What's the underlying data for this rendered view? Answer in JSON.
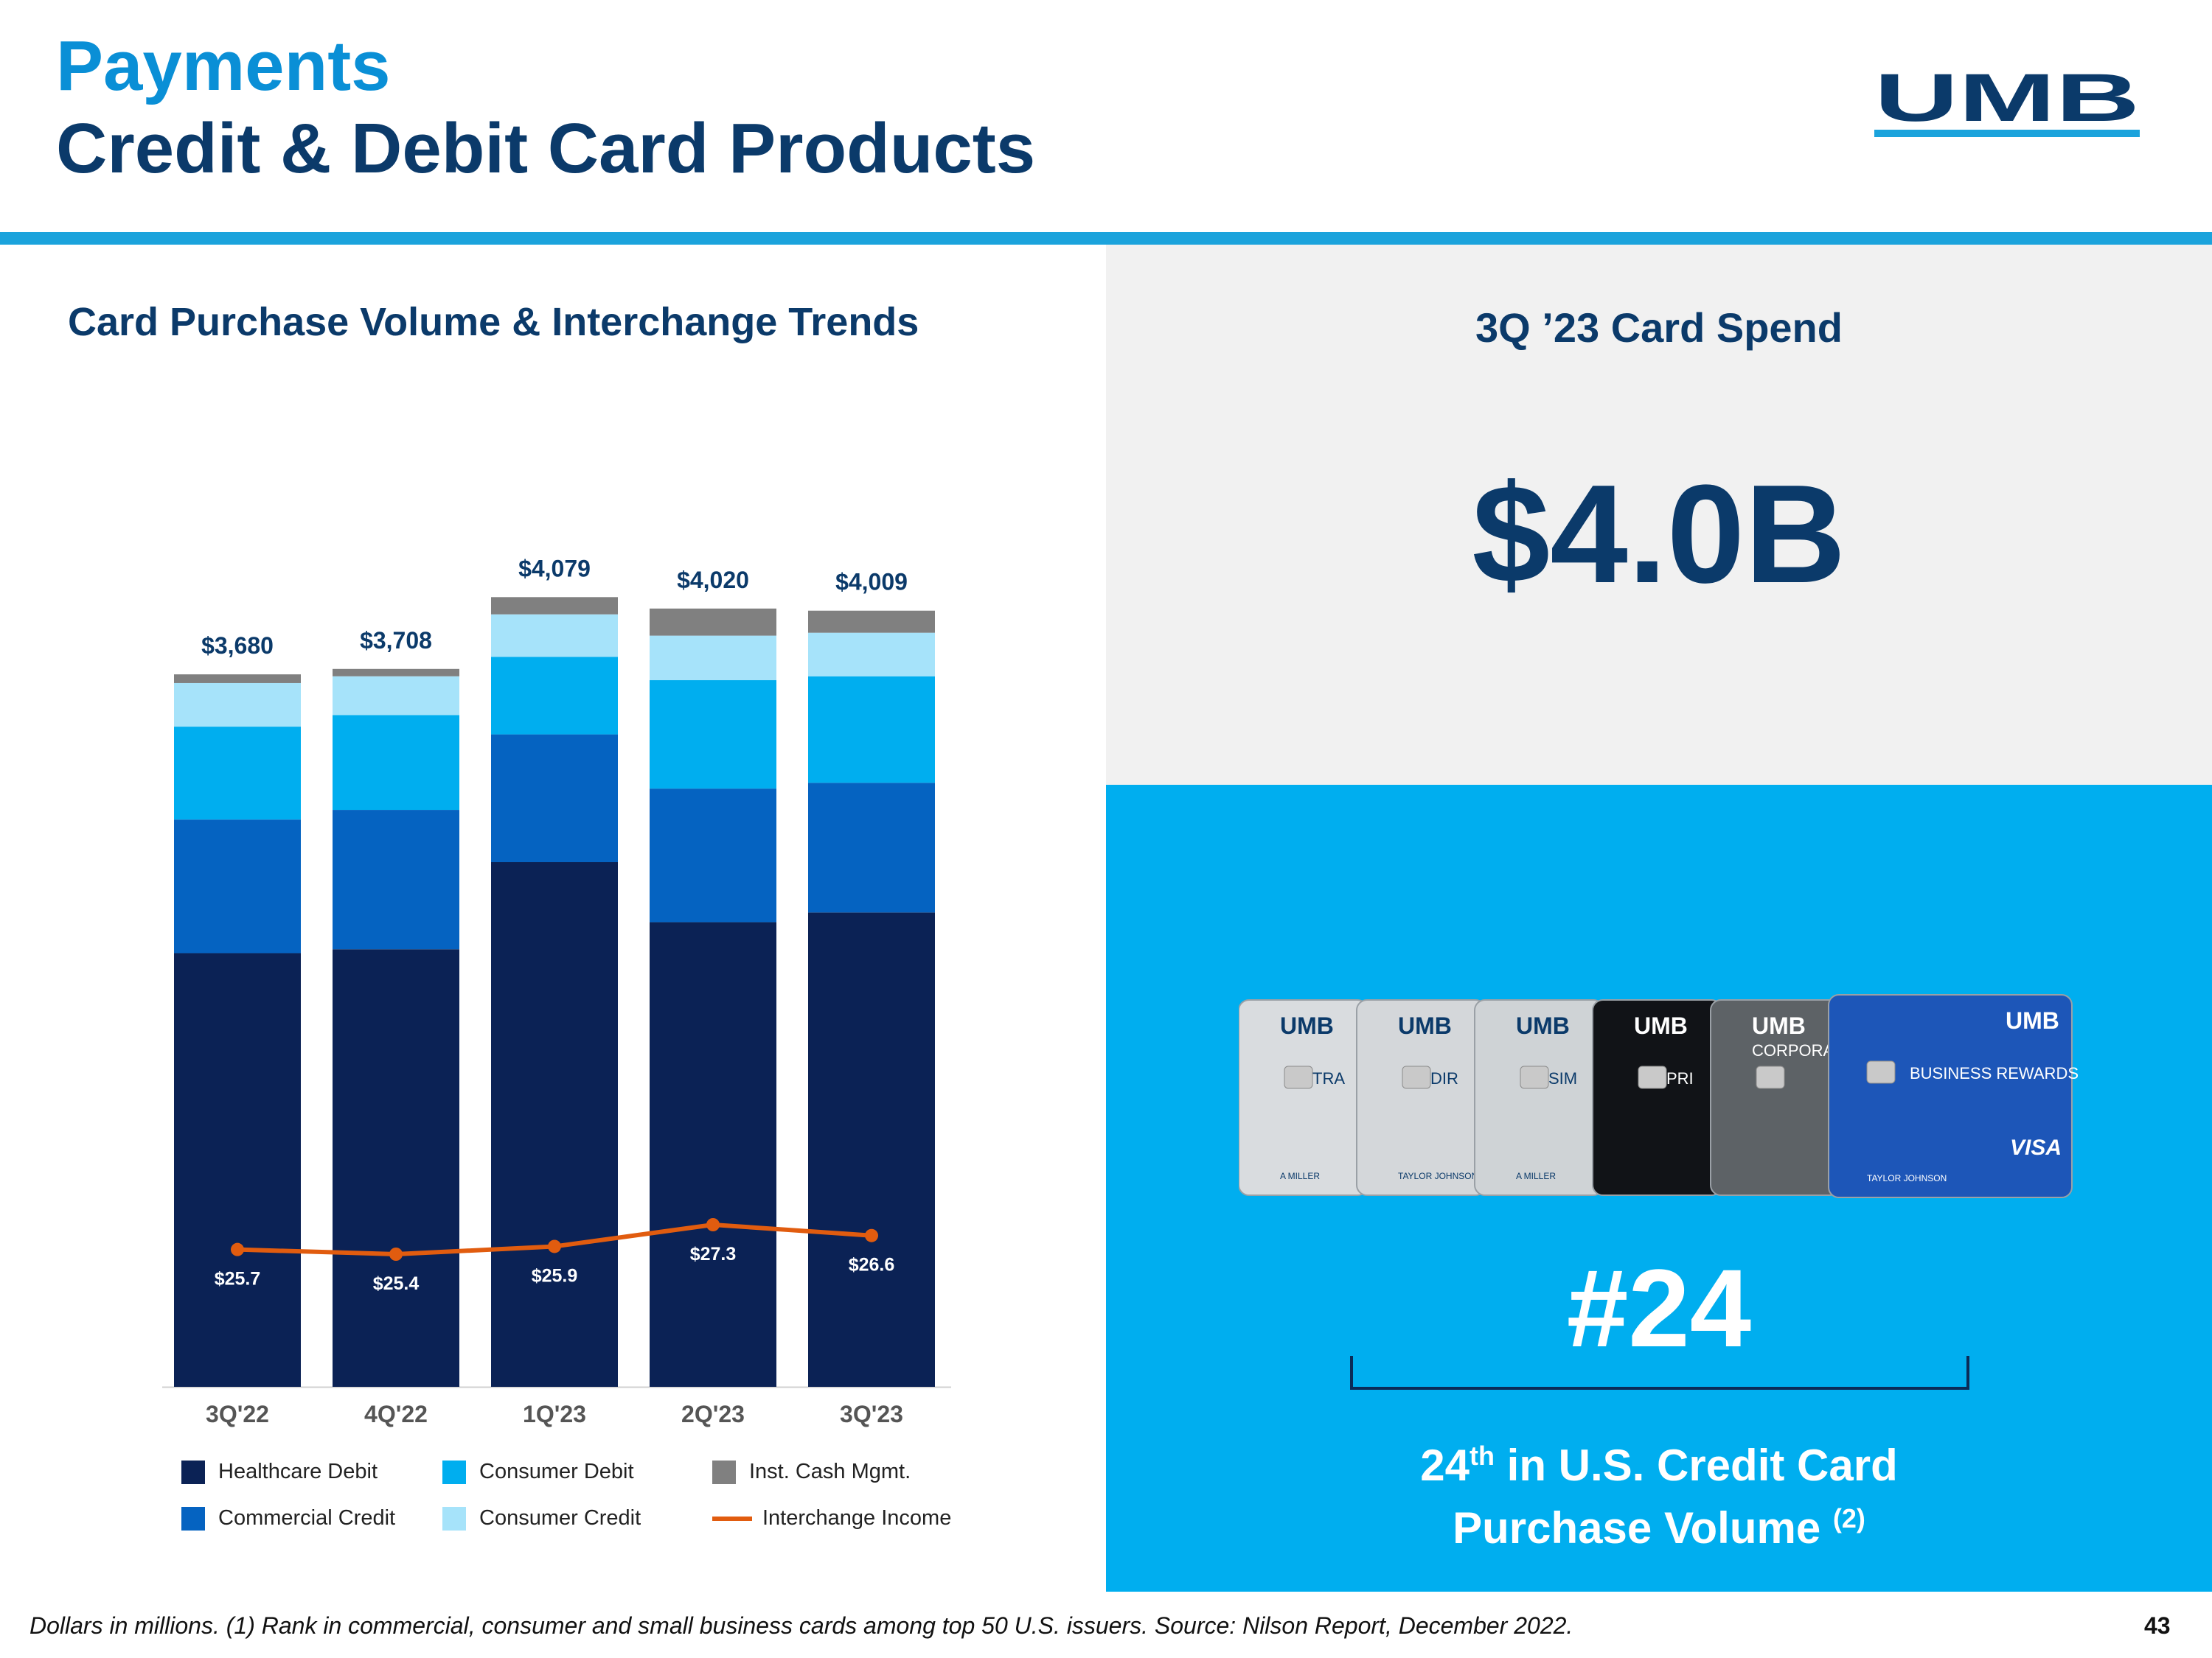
{
  "header": {
    "title_line1": "Payments",
    "title_line2": "Credit & Debit Card Products",
    "logo_text": "UMB"
  },
  "left_panel": {
    "title": "Card Purchase Volume & Interchange Trends"
  },
  "chart_data": {
    "type": "bar",
    "stacked": true,
    "title": "Card Purchase Volume & Interchange Trends",
    "categories": [
      "3Q'22",
      "4Q'22",
      "1Q'23",
      "2Q'23",
      "3Q'23"
    ],
    "totals": [
      "$3,680",
      "$3,708",
      "$4,079",
      "$4,020",
      "$4,009"
    ],
    "total_values": [
      3680,
      3708,
      4079,
      4020,
      4009
    ],
    "series": [
      {
        "name": "Healthcare Debit",
        "color": "#0b2255",
        "values": [
          2240,
          2260,
          2710,
          2400,
          2450
        ]
      },
      {
        "name": "Commercial Credit",
        "color": "#0563c1",
        "values": [
          690,
          720,
          660,
          690,
          670
        ]
      },
      {
        "name": "Consumer Debit",
        "color": "#00aeef",
        "values": [
          480,
          490,
          400,
          560,
          550
        ]
      },
      {
        "name": "Consumer Credit",
        "color": "#a6e3fa",
        "values": [
          225,
          200,
          220,
          230,
          225
        ]
      },
      {
        "name": "Inst. Cash Mgmt.",
        "color": "#808080",
        "values": [
          45,
          38,
          89,
          140,
          114
        ]
      }
    ],
    "line_series": {
      "name": "Interchange Income",
      "color": "#e15c0f",
      "values": [
        25.7,
        25.4,
        25.9,
        27.3,
        26.6
      ],
      "labels": [
        "$25.7",
        "$25.4",
        "$25.9",
        "$27.3",
        "$26.6"
      ]
    },
    "ylim": [
      0,
      4200
    ],
    "legend_position": "bottom",
    "grid": false
  },
  "legend_layout": [
    [
      "Healthcare Debit",
      "Consumer Debit",
      "Inst. Cash Mgmt."
    ],
    [
      "Commercial Credit",
      "Consumer Credit",
      "Interchange Income"
    ]
  ],
  "right_panel": {
    "spend_title": "3Q ’23 Card Spend",
    "spend_value": "$4.0B",
    "rank": "#24",
    "rank_desc_pre": "24",
    "rank_desc_sup": "th",
    "rank_desc_post": " in U.S. Credit Card",
    "rank_desc_line2": "Purchase Volume ",
    "rank_desc_note": "(2)"
  },
  "cards": [
    {
      "brand": "UMB",
      "label": "TRA",
      "holder": "A MILLER",
      "color": "#d9dcdf"
    },
    {
      "brand": "UMB",
      "label": "DIR",
      "holder": "TAYLOR JOHNSON",
      "color": "#d4d7da"
    },
    {
      "brand": "UMB",
      "label": "SIM",
      "holder": "A MILLER",
      "color": "#cfd3d6"
    },
    {
      "brand": "UMB",
      "label": "PRI",
      "holder": "",
      "color": "#111317"
    },
    {
      "brand": "UMB",
      "label": "CORPORAT",
      "holder": "",
      "color": "#5d6266"
    },
    {
      "brand": "UMB",
      "label": "BUSINESS REWARDS",
      "holder": "TAYLOR JOHNSON",
      "network": "VISA",
      "color": "#1d56b8"
    }
  ],
  "footer": {
    "footnote": "Dollars in millions. (1) Rank in commercial, consumer and small business cards among top 50 U.S. issuers. Source: Nilson Report, December 2022.",
    "page_number": "43"
  }
}
